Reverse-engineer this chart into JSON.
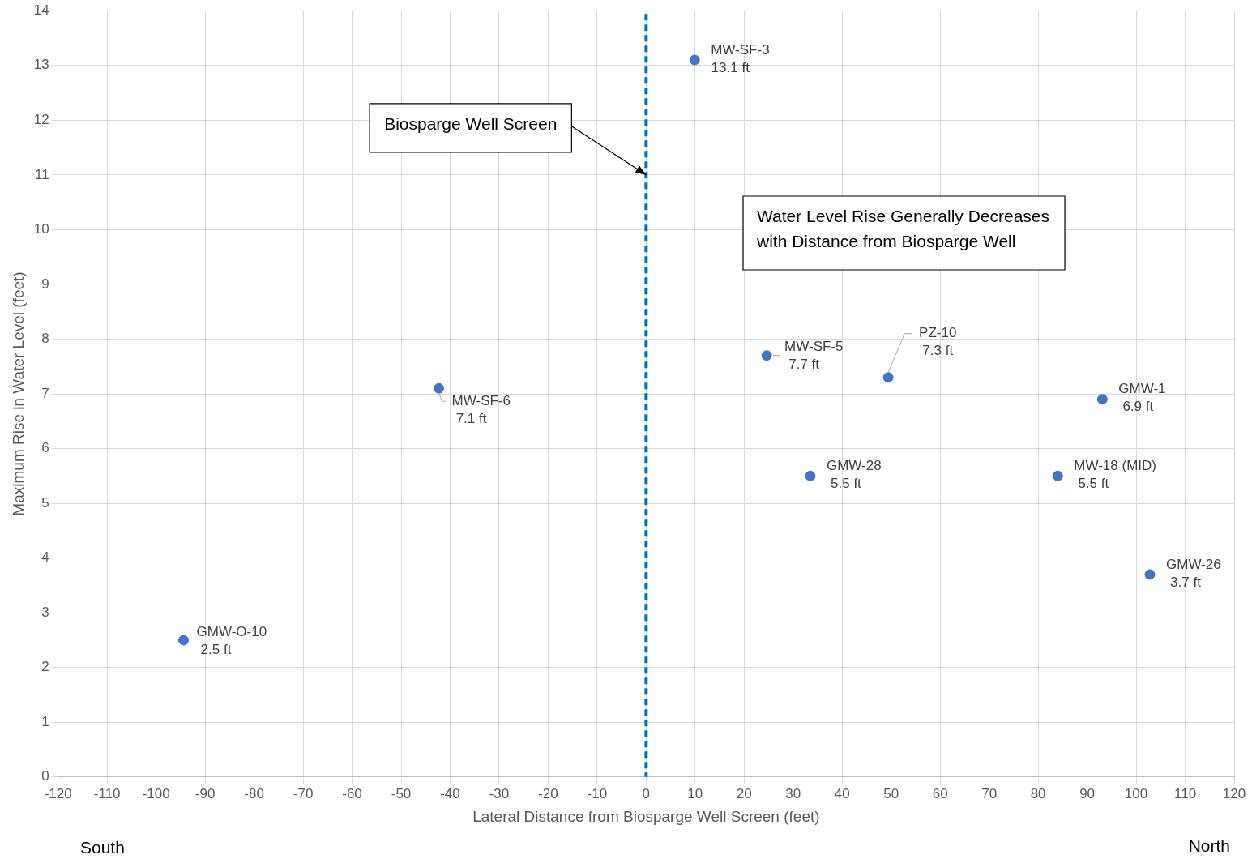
{
  "chart_data": {
    "type": "scatter",
    "xlabel": "Lateral Distance from Biosparge Well Screen (feet)",
    "ylabel": "Maximum Rise in Water Level (feet)",
    "xlim": [
      -120,
      120
    ],
    "xticks": [
      -120,
      -110,
      -100,
      -90,
      -80,
      -70,
      -60,
      -50,
      -40,
      -30,
      -20,
      -10,
      0,
      10,
      20,
      30,
      40,
      50,
      60,
      70,
      80,
      90,
      100,
      110,
      120
    ],
    "ylim": [
      0,
      14
    ],
    "yticks": [
      0,
      1,
      2,
      3,
      4,
      5,
      6,
      7,
      8,
      9,
      10,
      11,
      12,
      13,
      14
    ],
    "grid": true,
    "legend": false,
    "marker": "circle",
    "series": [
      {
        "name": "GMW-O-10",
        "color": "#4472c4",
        "x": [
          -94.4
        ],
        "values": [
          2.5
        ],
        "value_labels": [
          "2.5 ft"
        ]
      },
      {
        "name": "MW-SF-6",
        "color": "#4472c4",
        "x": [
          -42.3
        ],
        "values": [
          7.1
        ],
        "value_labels": [
          "7.1 ft"
        ]
      },
      {
        "name": "MW-SF-3",
        "color": "#4472c4",
        "x": [
          9.9
        ],
        "values": [
          13.1
        ],
        "value_labels": [
          "13.1 ft"
        ]
      },
      {
        "name": "MW-SF-5",
        "color": "#4472c4",
        "x": [
          24.6
        ],
        "values": [
          7.7
        ],
        "value_labels": [
          "7.7 ft"
        ]
      },
      {
        "name": "GMW-28",
        "color": "#4472c4",
        "x": [
          33.5
        ],
        "values": [
          5.5
        ],
        "value_labels": [
          "5.5 ft"
        ]
      },
      {
        "name": "PZ-10",
        "color": "#4472c4",
        "x": [
          49.4
        ],
        "values": [
          7.3
        ],
        "value_labels": [
          "7.3 ft"
        ]
      },
      {
        "name": "MW-18 (MID)",
        "color": "#4472c4",
        "x": [
          84.0
        ],
        "values": [
          5.5
        ],
        "value_labels": [
          "5.5 ft"
        ]
      },
      {
        "name": "GMW-1",
        "color": "#4472c4",
        "x": [
          93.1
        ],
        "values": [
          6.9
        ],
        "value_labels": [
          "6.9 ft"
        ]
      },
      {
        "name": "GMW-26",
        "color": "#4472c4",
        "x": [
          102.8
        ],
        "values": [
          3.7
        ],
        "value_labels": [
          "3.7 ft"
        ]
      }
    ],
    "ref_lines": [
      {
        "axis": "x",
        "value": 0,
        "color": "#0070c0",
        "line_style": "dashed"
      }
    ],
    "annotations": [
      {
        "text": "Biosparge Well Screen",
        "x": 0,
        "y": 11
      },
      "Water Level Rise Generally Decreases\nwith Distance from Biosparge Well",
      "South",
      "North"
    ]
  }
}
